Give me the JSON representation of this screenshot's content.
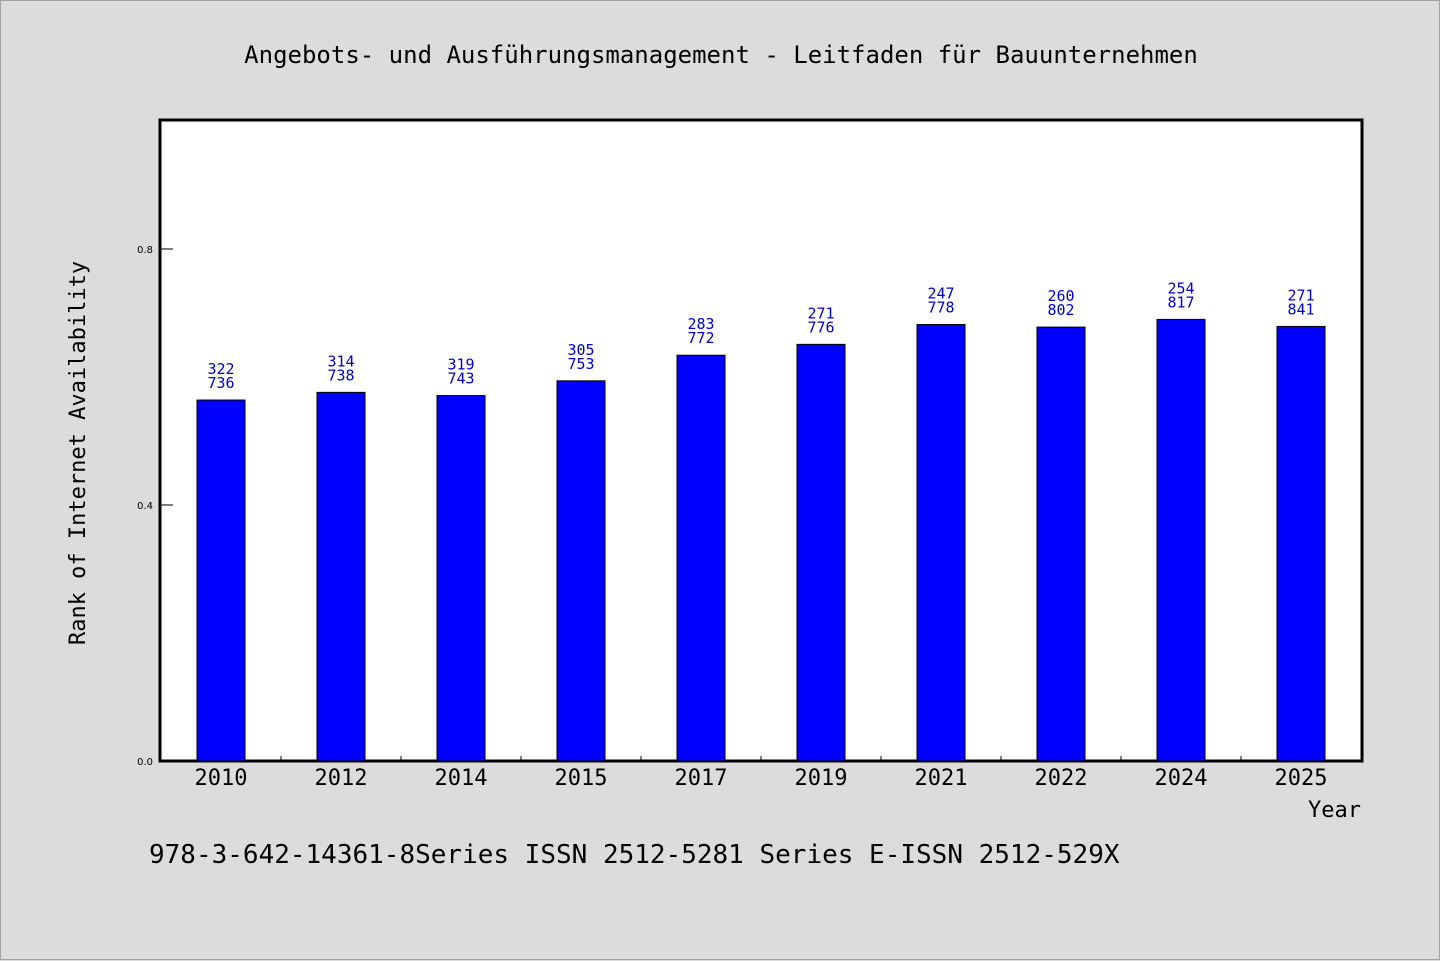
{
  "chart_data": {
    "type": "bar",
    "title": "Angebots- und Ausführungsmanagement - Leitfaden für Bauunternehmen",
    "xlabel": "Year",
    "ylabel": "Rank of Internet Availability",
    "categories": [
      "2010",
      "2012",
      "2014",
      "2015",
      "2017",
      "2019",
      "2021",
      "2022",
      "2024",
      "2025"
    ],
    "values": [
      0.564,
      0.576,
      0.571,
      0.594,
      0.634,
      0.651,
      0.682,
      0.678,
      0.69,
      0.679
    ],
    "bar_labels": [
      [
        "322",
        "736"
      ],
      [
        "314",
        "738"
      ],
      [
        "319",
        "743"
      ],
      [
        "305",
        "753"
      ],
      [
        "283",
        "772"
      ],
      [
        "271",
        "776"
      ],
      [
        "247",
        "778"
      ],
      [
        "260",
        "802"
      ],
      [
        "254",
        "817"
      ],
      [
        "271",
        "841"
      ]
    ],
    "yticks": [
      "0.0",
      "0.4",
      "0.8"
    ],
    "ylim": [
      0,
      1.0
    ],
    "grid": false,
    "bar_color": "#0000ff",
    "label_color": "#0000cc",
    "background_color": "#dcdcdc",
    "plot_background": "#ffffff"
  },
  "footer": {
    "text": "978-3-642-14361-8Series ISSN 2512-5281 Series E-ISSN 2512-529X"
  }
}
